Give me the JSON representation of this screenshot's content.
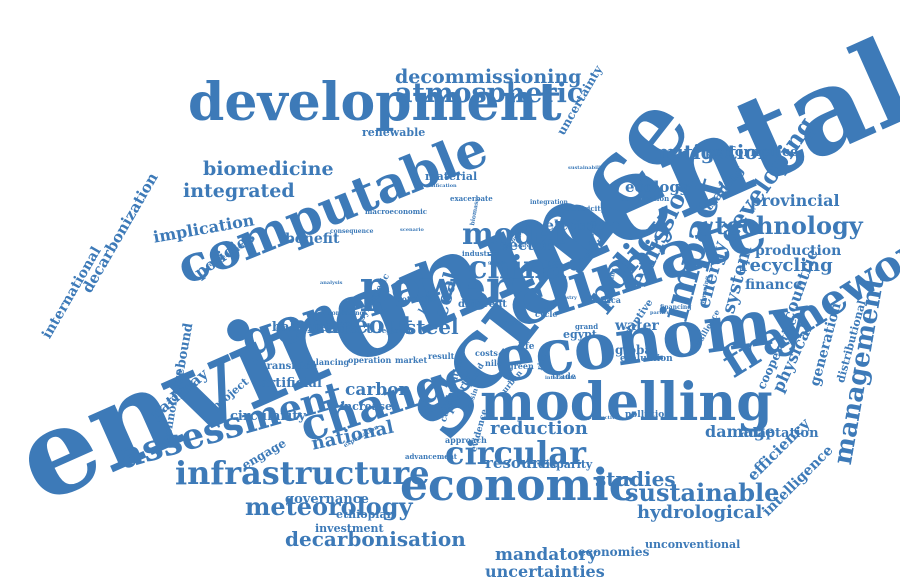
{
  "colors": {
    "word": "#3d7ab8",
    "background": "#ffffff"
  },
  "words": [
    "environmental",
    "science",
    "economy",
    "climate",
    "development",
    "computable",
    "general",
    "modelling",
    "assessment",
    "change",
    "economic",
    "infrastructure",
    "circular",
    "framework",
    "power",
    "policy",
    "impact",
    "phaseout",
    "china",
    "model",
    "atmospheric",
    "decommissioning",
    "emission",
    "technology",
    "management",
    "meteorology",
    "sustainable",
    "decarbonisation",
    "hydrological",
    "studies",
    "mitigation",
    "developing",
    "biomedicine",
    "integrated",
    "provincial",
    "recycling",
    "finance",
    "production",
    "energy",
    "system",
    "steel",
    "coal",
    "national",
    "carbon",
    "reduction",
    "damage",
    "adaptation",
    "efficiency",
    "intelligence",
    "implication",
    "policies",
    "benefit",
    "decarbonization",
    "international",
    "pathway",
    "project",
    "rebound",
    "technologies",
    "engage",
    "governance",
    "investment",
    "ethiopian",
    "resource",
    "disparity",
    "mandatory",
    "uncertainties",
    "economies",
    "unconventional",
    "performance",
    "ecology",
    "trading",
    "electric",
    "sector",
    "water",
    "global",
    "physical",
    "cooperative",
    "countrie",
    "generation",
    "distributional",
    "uncertainty",
    "renewable",
    "material",
    "artificial",
    "circularity",
    "balance",
    "effect",
    "increase",
    "transition",
    "operation",
    "market",
    "result",
    "iron",
    "life",
    "egypt",
    "trade",
    "pollution",
    "green",
    "nile",
    "urban",
    "poverty",
    "approach",
    "level",
    "potential",
    "synergetic",
    "combining",
    "different",
    "industrial",
    "human",
    "adaptive",
    "evaluation",
    "resilience",
    "africa",
    "grand",
    "cycle",
    "river",
    "based",
    "collaborative",
    "evidence",
    "advancement",
    "expectation",
    "balancing",
    "regional",
    "macroeconomic",
    "consequence",
    "competitiveness",
    "exacerbate",
    "electricity",
    "integration",
    "combination",
    "acidification",
    "sustainability",
    "decoupling",
    "financing",
    "particulate",
    "dynamic",
    "ghana",
    "scarcity",
    "planning",
    "costs",
    "basin",
    "biomass",
    "forestry",
    "productivity",
    "accounting",
    "analysis",
    "interaction",
    "scenario",
    "welfare"
  ]
}
